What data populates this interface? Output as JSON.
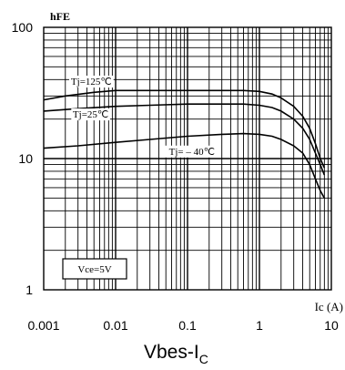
{
  "chart_data": {
    "type": "line",
    "title": "Vbes-I",
    "title_subscript": "C",
    "ylabel": "hFE",
    "xlabel": "Ic (A)",
    "x_scale": "log",
    "y_scale": "log",
    "xlim": [
      0.001,
      10
    ],
    "ylim": [
      1,
      100
    ],
    "x_ticks": [
      "0.001",
      "0.01",
      "0.1",
      "1",
      "10"
    ],
    "y_ticks": [
      "1",
      "10",
      "100"
    ],
    "grid": true,
    "annotation": "Vce=5V",
    "series": [
      {
        "name": "Tj=125℃",
        "x": [
          0.001,
          0.002,
          0.005,
          0.01,
          0.05,
          0.1,
          0.3,
          0.6,
          1.0,
          1.5,
          2.0,
          3.0,
          4.0,
          5.0,
          6.0,
          7.0,
          8.0
        ],
        "y": [
          28,
          30,
          32,
          33,
          33,
          33,
          33,
          33,
          32.5,
          31,
          29,
          25,
          21,
          17,
          13,
          10,
          8.5
        ]
      },
      {
        "name": "Tj=25℃",
        "x": [
          0.001,
          0.003,
          0.01,
          0.03,
          0.1,
          0.3,
          0.6,
          1.0,
          1.5,
          2.0,
          3.0,
          4.0,
          5.0,
          6.0,
          7.0,
          8.0
        ],
        "y": [
          23,
          24,
          25,
          25.5,
          26,
          26,
          26,
          25.5,
          24.5,
          23,
          20,
          17,
          14,
          11,
          9,
          7.5
        ]
      },
      {
        "name": "Tj= – 40℃",
        "x": [
          0.001,
          0.003,
          0.01,
          0.03,
          0.1,
          0.3,
          0.6,
          1.0,
          1.5,
          2.0,
          3.0,
          4.0,
          5.0,
          6.0,
          7.0,
          8.0
        ],
        "y": [
          12,
          12.5,
          13.3,
          14,
          14.8,
          15.3,
          15.5,
          15.3,
          14.8,
          14,
          12.5,
          11,
          9,
          7,
          5.7,
          5
        ]
      }
    ]
  }
}
